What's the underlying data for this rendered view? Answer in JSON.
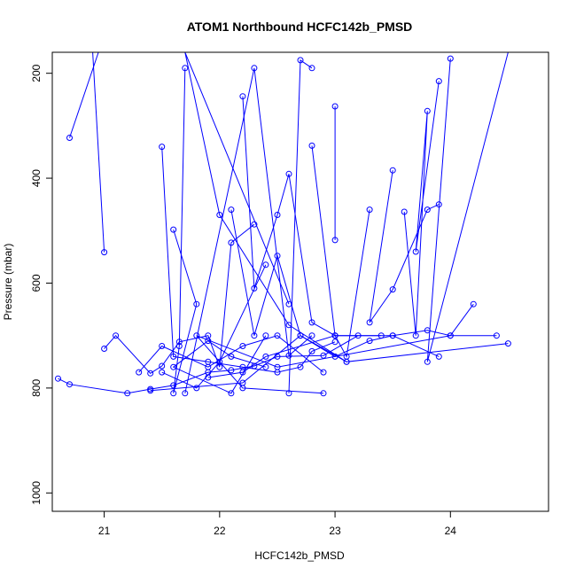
{
  "chart_data": {
    "type": "line",
    "title": "ATOM1 Northbound HCFC142b_PMSD",
    "xlabel": "HCFC142b_PMSD",
    "ylabel": "Pressure (mbar)",
    "xlim": [
      20.55,
      24.85
    ],
    "ylim": [
      1035,
      160
    ],
    "y_inverted": true,
    "x_ticks": [
      21,
      22,
      23,
      24
    ],
    "y_ticks": [
      200,
      400,
      600,
      800,
      1000
    ],
    "grid": false,
    "legend": "none",
    "series_color": "#0000ff",
    "series": [
      {
        "x": [
          20.6,
          20.7,
          21.2,
          21.4,
          21.6,
          21.9,
          22.1,
          22.3,
          22.5,
          22.9,
          23.2
        ],
        "y": [
          782,
          793,
          810,
          802,
          795,
          770,
          766,
          758,
          740,
          738,
          700
        ]
      },
      {
        "x": [
          20.7,
          20.95
        ],
        "y": [
          323,
          160
        ]
      },
      {
        "x": [
          21.0,
          21.1,
          21.4,
          21.5,
          21.65,
          21.9,
          22.0,
          22.1,
          22.3
        ],
        "y": [
          725,
          700,
          772,
          758,
          712,
          700,
          760,
          523,
          488
        ]
      },
      {
        "x": [
          21.0,
          20.9
        ],
        "y": [
          541,
          160
        ]
      },
      {
        "x": [
          21.6,
          21.8,
          21.6,
          21.65,
          21.7
        ],
        "y": [
          498,
          640,
          810,
          720,
          190
        ]
      },
      {
        "x": [
          21.5,
          21.6,
          21.9,
          22.2,
          22.5,
          22.7,
          22.8,
          23.0
        ],
        "y": [
          340,
          740,
          750,
          760,
          770,
          760,
          730,
          712
        ]
      },
      {
        "x": [
          22.1,
          22.3,
          22.5,
          22.7,
          23.0,
          23.3,
          23.5,
          23.8,
          24.0,
          24.2
        ],
        "y": [
          460,
          700,
          548,
          700,
          740,
          710,
          700,
          690,
          700,
          640
        ]
      },
      {
        "x": [
          22.2,
          22.3,
          22.5,
          22.6,
          22.8,
          23.0,
          23.4
        ],
        "y": [
          244,
          610,
          470,
          392,
          675,
          700,
          700
        ]
      },
      {
        "x": [
          22.8,
          23.0,
          23.1,
          23.3
        ],
        "y": [
          338,
          700,
          740,
          460
        ]
      },
      {
        "x": [
          22.8,
          22.7,
          22.6
        ],
        "y": [
          190,
          175,
          810
        ]
      },
      {
        "x": [
          23.0,
          23.0
        ],
        "y": [
          263,
          518
        ]
      },
      {
        "x": [
          23.5,
          23.3,
          23.5,
          23.8,
          23.9
        ],
        "y": [
          385,
          675,
          612,
          460,
          450
        ]
      },
      {
        "x": [
          23.6,
          23.7,
          23.8,
          23.7,
          23.9
        ],
        "y": [
          464,
          700,
          272,
          540,
          215
        ]
      },
      {
        "x": [
          21.3,
          21.5,
          21.9,
          22.2,
          22.5,
          22.9
        ],
        "y": [
          770,
          720,
          760,
          720,
          700,
          770
        ]
      },
      {
        "x": [
          22.4,
          22.1,
          21.6,
          21.9,
          22.1,
          22.4
        ],
        "y": [
          700,
          810,
          760,
          710,
          740,
          760
        ]
      },
      {
        "x": [
          21.9,
          22.2,
          22.4,
          23.0,
          23.5,
          23.9
        ],
        "y": [
          780,
          770,
          740,
          700,
          700,
          740
        ]
      },
      {
        "x": [
          22.9,
          22.2,
          21.8,
          22.5,
          24.0,
          24.4
        ],
        "y": [
          810,
          800,
          700,
          760,
          700,
          700
        ]
      },
      {
        "x": [
          21.4,
          22.2,
          22.7,
          23.1,
          24.5
        ],
        "y": [
          805,
          790,
          700,
          750,
          715
        ]
      },
      {
        "x": [
          22.4,
          22.0,
          21.8,
          21.5
        ],
        "y": [
          565,
          750,
          800,
          770
        ]
      },
      {
        "x": [
          24.0,
          23.8,
          24.5
        ],
        "y": [
          172,
          750,
          160
        ]
      },
      {
        "x": [
          21.7,
          22.3,
          22.6,
          22.8
        ],
        "y": [
          810,
          190,
          738,
          700
        ]
      },
      {
        "x": [
          22.6,
          21.7,
          22.0,
          22.6,
          23.1
        ],
        "y": [
          640,
          160,
          470,
          680,
          750
        ]
      }
    ]
  }
}
